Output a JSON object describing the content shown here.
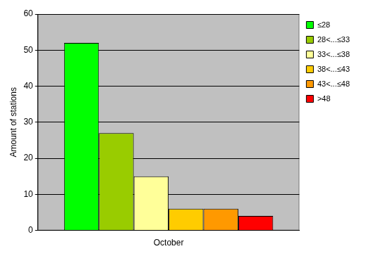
{
  "chart_data": {
    "type": "bar",
    "categories": [
      "October"
    ],
    "y_label": "Amount of stations",
    "series": [
      {
        "name": "≤28",
        "color": "#00ff00",
        "values": [
          52
        ]
      },
      {
        "name": "28<...≤33",
        "color": "#99cc00",
        "values": [
          27
        ]
      },
      {
        "name": "33<...≤38",
        "color": "#ffff99",
        "values": [
          15
        ]
      },
      {
        "name": "38<...≤43",
        "color": "#ffcc00",
        "values": [
          6
        ]
      },
      {
        "name": "43<...≤48",
        "color": "#ff9900",
        "values": [
          6
        ]
      },
      {
        "name": ">48",
        "color": "#ff0000",
        "values": [
          4
        ]
      }
    ],
    "ylim": [
      0,
      60
    ],
    "yticks": [
      0,
      10,
      20,
      30,
      40,
      50,
      60
    ],
    "grid": true,
    "legend": "upper right"
  }
}
